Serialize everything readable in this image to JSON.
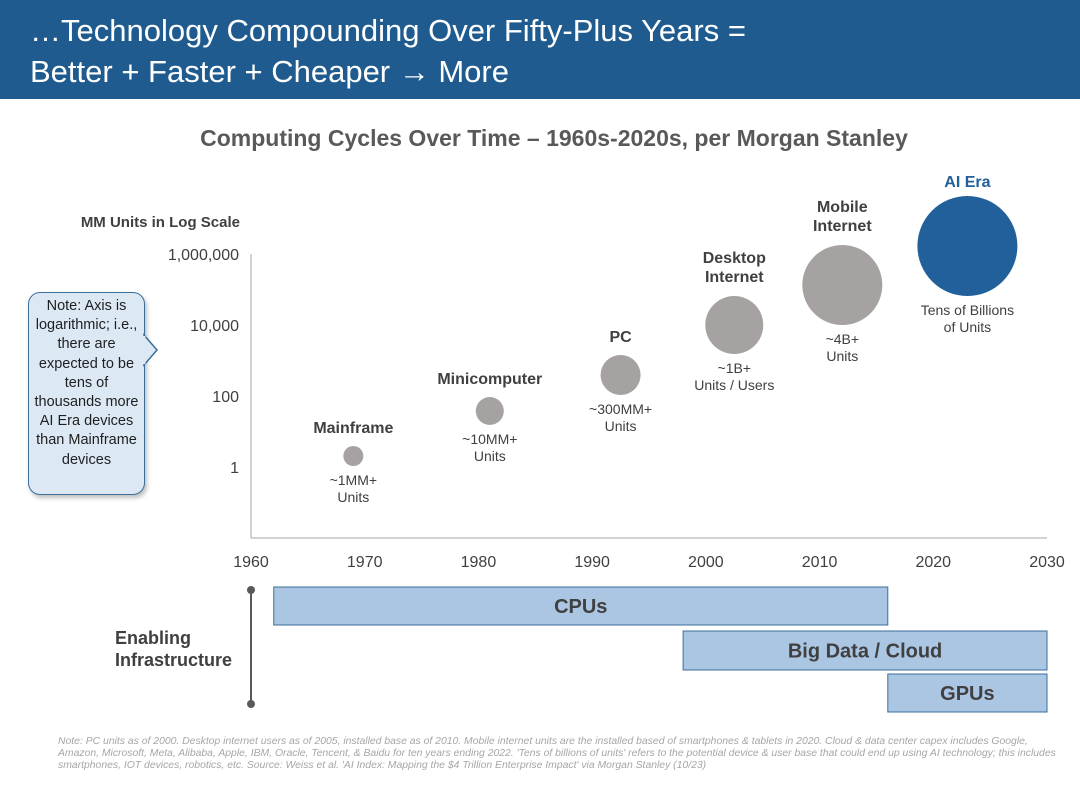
{
  "header": {
    "title_line1": "…Technology Compounding Over Fifty-Plus Years =",
    "title_line2": "Better + Faster + Cheaper → More"
  },
  "chart_title": "Computing Cycles Over Time – 1960s-2020s, per Morgan Stanley",
  "note_box": "Note: Axis is logarithmic; i.e., there are expected to be tens of thousands more AI Era devices than Mainframe devices",
  "chart_data": {
    "type": "scatter",
    "title": "Computing Cycles Over Time – 1960s-2020s, per Morgan Stanley",
    "ylabel": "MM Units in Log Scale",
    "y_scale": "log",
    "xlim": [
      1960,
      2030
    ],
    "x_ticks": [
      "1960",
      "1970",
      "1980",
      "1990",
      "2000",
      "2010",
      "2020",
      "2030"
    ],
    "y_ticks": [
      "1",
      "100",
      "10,000",
      "1,000,000"
    ],
    "points": [
      {
        "label": "Mainframe",
        "x": 1969,
        "y": 1,
        "units_line1": "~1MM+",
        "units_line2": "Units",
        "color": "#a6a2a2"
      },
      {
        "label": "Minicomputer",
        "x": 1981,
        "y": 10,
        "units_line1": "~10MM+",
        "units_line2": "Units",
        "color": "#a6a2a2"
      },
      {
        "label": "PC",
        "x": 1992.5,
        "y": 300,
        "units_line1": "~300MM+",
        "units_line2": "Units",
        "color": "#a6a2a2"
      },
      {
        "label_line1": "Desktop",
        "label_line2": "Internet",
        "x": 2002.5,
        "y": 1000,
        "units_line1": "~1B+",
        "units_line2": "Units / Users",
        "color": "#a6a2a2"
      },
      {
        "label_line1": "Mobile",
        "label_line2": "Internet",
        "x": 2012,
        "y": 4000,
        "units_line1": "~4B+",
        "units_line2": "Units",
        "color": "#a6a2a2"
      },
      {
        "label": "AI Era",
        "x": 2023,
        "y": 40000,
        "units_line1": "Tens of Billions",
        "units_line2": "of Units",
        "color": "#21609a"
      }
    ],
    "infrastructure": {
      "label_line1": "Enabling",
      "label_line2": "Infrastructure",
      "bars": [
        {
          "label": "CPUs",
          "start": 1962,
          "end": 2016
        },
        {
          "label": "Big Data / Cloud",
          "start": 1998,
          "end": 2030
        },
        {
          "label": "GPUs",
          "start": 2016,
          "end": 2030
        }
      ]
    }
  },
  "footnote": "Note: PC units as of 2000. Desktop internet users as of 2005, installed base as of 2010. Mobile internet units are the installed based of smartphones & tablets in 2020. Cloud & data center capex includes Google, Amazon, Microsoft, Meta, Alibaba, Apple, IBM, Oracle, Tencent, & Baidu for ten years ending 2022. 'Tens of billions of units' refers to the potential device & user base that could end up using AI technology; this includes smartphones, IOT devices, robotics, etc. Source: Weiss et al. 'AI Index: Mapping the $4 Trillion Enterprise Impact' via Morgan Stanley (10/23)"
}
